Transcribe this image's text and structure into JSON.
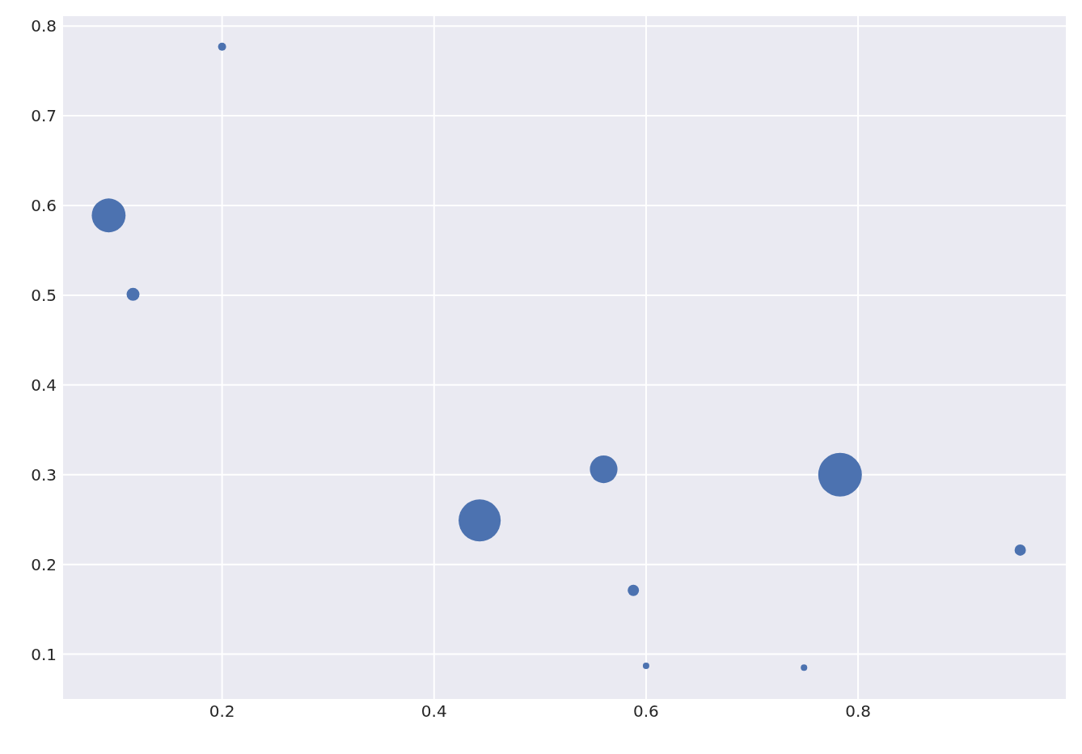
{
  "chart_data": {
    "type": "bubble",
    "x": [
      0.2,
      0.093,
      0.116,
      0.443,
      0.56,
      0.588,
      0.6,
      0.749,
      0.783,
      0.953
    ],
    "values": [
      0.777,
      0.589,
      0.501,
      0.249,
      0.306,
      0.171,
      0.087,
      0.085,
      0.3,
      0.216
    ],
    "sizes": [
      0.034,
      0.6,
      0.088,
      0.93,
      0.4,
      0.067,
      0.022,
      0.022,
      1,
      0.067
    ],
    "color": "#4c72b0",
    "xlim": [
      0.05,
      0.996
    ],
    "ylim": [
      0.05,
      0.811
    ],
    "xticks": [
      0.2,
      0.4,
      0.6,
      0.8
    ],
    "yticks": [
      0.1,
      0.2,
      0.3,
      0.4,
      0.5,
      0.6,
      0.7,
      0.8
    ],
    "grid": true
  }
}
